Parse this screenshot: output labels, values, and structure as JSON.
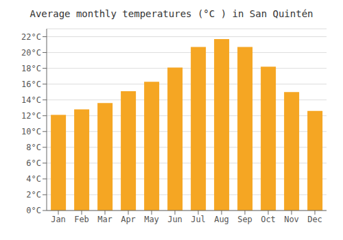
{
  "chart_data": {
    "type": "bar",
    "title": "Average monthly temperatures (°C ) in San Quintén",
    "categories": [
      "Jan",
      "Feb",
      "Mar",
      "Apr",
      "May",
      "Jun",
      "Jul",
      "Aug",
      "Sep",
      "Oct",
      "Nov",
      "Dec"
    ],
    "values": [
      12.1,
      12.8,
      13.6,
      15.1,
      16.3,
      18.1,
      20.7,
      21.7,
      20.7,
      18.2,
      15.0,
      12.6
    ],
    "color": "#F5A623",
    "ylim": [
      0,
      23
    ],
    "yticks": [
      {
        "value": 0,
        "label": "0°C"
      },
      {
        "value": 2,
        "label": "2°C"
      },
      {
        "value": 4,
        "label": "4°C"
      },
      {
        "value": 6,
        "label": "6°C"
      },
      {
        "value": 8,
        "label": "8°C"
      },
      {
        "value": 10,
        "label": "10°C"
      },
      {
        "value": 12,
        "label": "12°C"
      },
      {
        "value": 14,
        "label": "14°C"
      },
      {
        "value": 16,
        "label": "16°C"
      },
      {
        "value": 18,
        "label": "18°C"
      },
      {
        "value": 20,
        "label": "20°C"
      },
      {
        "value": 22,
        "label": "22°C"
      }
    ],
    "grid": true
  }
}
